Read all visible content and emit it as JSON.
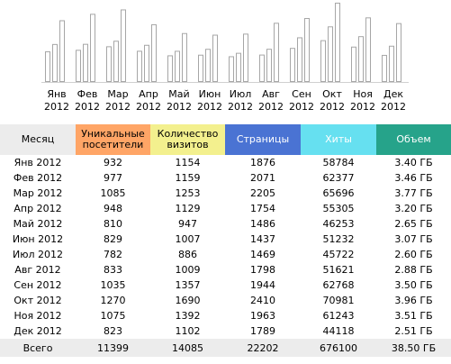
{
  "chart_data": {
    "type": "bar",
    "categories": [
      [
        "Янв",
        "2012"
      ],
      [
        "Фев",
        "2012"
      ],
      [
        "Мар",
        "2012"
      ],
      [
        "Апр",
        "2012"
      ],
      [
        "Май",
        "2012"
      ],
      [
        "Июн",
        "2012"
      ],
      [
        "Июл",
        "2012"
      ],
      [
        "Авг",
        "2012"
      ],
      [
        "Сен",
        "2012"
      ],
      [
        "Окт",
        "2012"
      ],
      [
        "Ноя",
        "2012"
      ],
      [
        "Дек",
        "2012"
      ]
    ],
    "series": [
      {
        "values": [
          932,
          977,
          1085,
          948,
          810,
          829,
          782,
          833,
          1035,
          1270,
          1075,
          823
        ],
        "color": "#ffffff"
      },
      {
        "values": [
          1154,
          1159,
          1253,
          1129,
          947,
          1007,
          886,
          1009,
          1357,
          1690,
          1392,
          1102
        ],
        "color": "#ffffff"
      },
      {
        "values": [
          1876,
          2071,
          2205,
          1754,
          1486,
          1437,
          1469,
          1798,
          1944,
          2410,
          1963,
          1789
        ],
        "color": "#ffffff"
      }
    ],
    "bar_outline": "#a6a6a6",
    "axis_color": "#d0d0d0",
    "ylim": [
      0,
      2410
    ]
  },
  "table": {
    "headers": [
      {
        "lines": [
          "Месяц"
        ],
        "bg": "#ececec",
        "fg": "#000000"
      },
      {
        "lines": [
          "Уникальные",
          "посетители"
        ],
        "bg": "#ffa566",
        "fg": "#000000"
      },
      {
        "lines": [
          "Количество",
          "визитов"
        ],
        "bg": "#f3f08e",
        "fg": "#000000"
      },
      {
        "lines": [
          "Страницы"
        ],
        "bg": "#4a73d3",
        "fg": "#ffffff"
      },
      {
        "lines": [
          "Хиты"
        ],
        "bg": "#66e0f0",
        "fg": "#ffffff"
      },
      {
        "lines": [
          "Объем"
        ],
        "bg": "#26a38a",
        "fg": "#ffffff"
      }
    ],
    "rows": [
      [
        "Янв 2012",
        "932",
        "1154",
        "1876",
        "58784",
        "3.40 ГБ"
      ],
      [
        "Фев 2012",
        "977",
        "1159",
        "2071",
        "62377",
        "3.46 ГБ"
      ],
      [
        "Мар 2012",
        "1085",
        "1253",
        "2205",
        "65696",
        "3.77 ГБ"
      ],
      [
        "Апр 2012",
        "948",
        "1129",
        "1754",
        "55305",
        "3.20 ГБ"
      ],
      [
        "Май 2012",
        "810",
        "947",
        "1486",
        "46253",
        "2.65 ГБ"
      ],
      [
        "Июн 2012",
        "829",
        "1007",
        "1437",
        "51232",
        "3.07 ГБ"
      ],
      [
        "Июл 2012",
        "782",
        "886",
        "1469",
        "45722",
        "2.60 ГБ"
      ],
      [
        "Авг 2012",
        "833",
        "1009",
        "1798",
        "51621",
        "2.88 ГБ"
      ],
      [
        "Сен 2012",
        "1035",
        "1357",
        "1944",
        "62768",
        "3.50 ГБ"
      ],
      [
        "Окт 2012",
        "1270",
        "1690",
        "2410",
        "70981",
        "3.96 ГБ"
      ],
      [
        "Ноя 2012",
        "1075",
        "1392",
        "1963",
        "61243",
        "3.51 ГБ"
      ],
      [
        "Дек 2012",
        "823",
        "1102",
        "1789",
        "44118",
        "2.51 ГБ"
      ]
    ],
    "total": [
      "Всего",
      "11399",
      "14085",
      "22202",
      "676100",
      "38.50 ГБ"
    ],
    "total_bg": "#ececec"
  }
}
